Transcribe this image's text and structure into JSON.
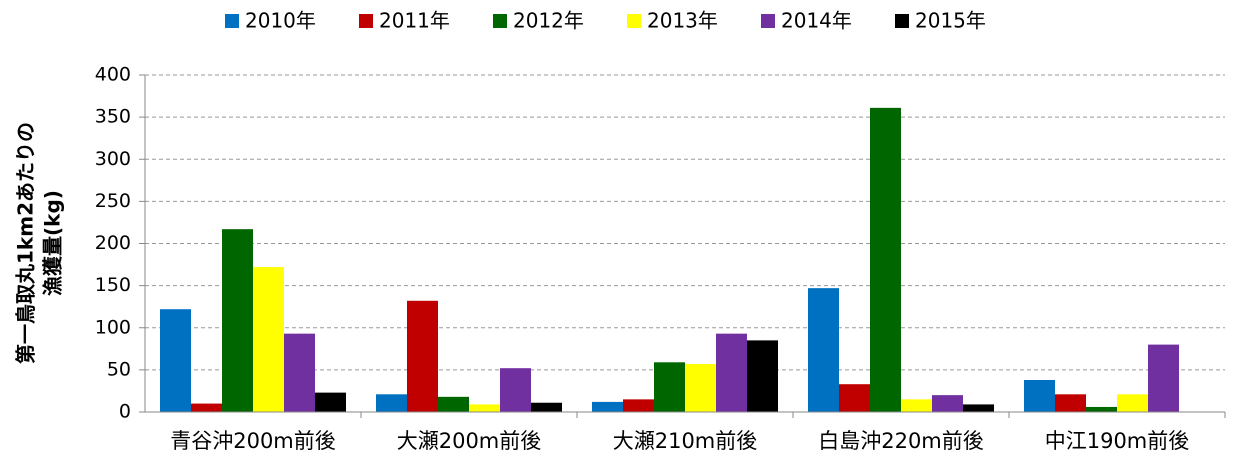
{
  "chart_data": {
    "type": "bar",
    "ylabel": [
      "第一鳥取丸1km2あたりの",
      "漁獲量(kg)"
    ],
    "categories": [
      "青谷沖200m前後",
      "大瀬200m前後",
      "大瀬210m前後",
      "白島沖220m前後",
      "中江190m前後"
    ],
    "series": [
      {
        "name": "2010年",
        "color": "#0070c0",
        "values": [
          122,
          21,
          12,
          147,
          38
        ]
      },
      {
        "name": "2011年",
        "color": "#c00000",
        "values": [
          10,
          132,
          15,
          33,
          21
        ]
      },
      {
        "name": "2012年",
        "color": "#006600",
        "values": [
          217,
          18,
          59,
          361,
          6
        ]
      },
      {
        "name": "2013年",
        "color": "#ffff00",
        "values": [
          172,
          9,
          57,
          15,
          21
        ]
      },
      {
        "name": "2014年",
        "color": "#7030a0",
        "values": [
          93,
          52,
          93,
          20,
          80
        ]
      },
      {
        "name": "2015年",
        "color": "#000000",
        "values": [
          23,
          11,
          85,
          9,
          0
        ]
      }
    ],
    "ylim": [
      0,
      400
    ],
    "yticks": [
      0,
      50,
      100,
      150,
      200,
      250,
      300,
      350,
      400
    ],
    "grid": true,
    "legend": "top"
  }
}
